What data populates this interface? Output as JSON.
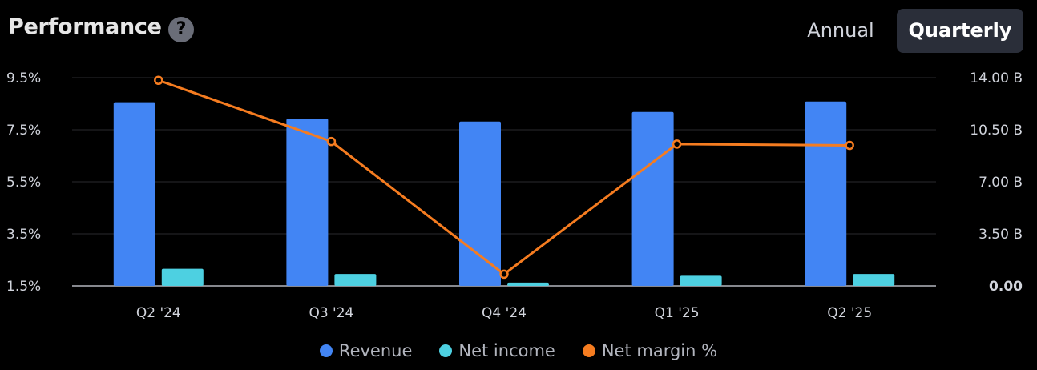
{
  "header": {
    "title": "Performance",
    "help_icon": "?",
    "toggle": {
      "annual_label": "Annual",
      "quarterly_label": "Quarterly",
      "selected": "Quarterly"
    }
  },
  "colors": {
    "revenue": "#4285f4",
    "net_income": "#4dd0e1",
    "net_margin": "#f57c20",
    "grid": "#2a2a2e",
    "baseline": "#b2b5be"
  },
  "chart_data": {
    "type": "bar",
    "categories": [
      "Q2 '24",
      "Q3 '24",
      "Q4 '24",
      "Q1 '25",
      "Q2 '25"
    ],
    "series": [
      {
        "name": "Revenue",
        "type": "bar",
        "axis": "right",
        "values": [
          12.35,
          11.25,
          11.05,
          11.7,
          12.4
        ]
      },
      {
        "name": "Net income",
        "type": "bar",
        "axis": "right",
        "values": [
          1.15,
          0.8,
          0.22,
          0.68,
          0.8
        ]
      },
      {
        "name": "Net margin %",
        "type": "line",
        "axis": "left",
        "values": [
          9.4,
          7.05,
          1.95,
          6.95,
          6.9
        ]
      }
    ],
    "left_axis": {
      "ticks": [
        "9.5%",
        "7.5%",
        "5.5%",
        "3.5%",
        "1.5%"
      ],
      "tick_values": [
        9.5,
        7.5,
        5.5,
        3.5,
        1.5
      ],
      "range": [
        1.5,
        9.5
      ]
    },
    "right_axis": {
      "ticks": [
        "14.00 B",
        "10.50 B",
        "7.00 B",
        "3.50 B",
        "0.00"
      ],
      "tick_values": [
        14.0,
        10.5,
        7.0,
        3.5,
        0.0
      ],
      "range": [
        0,
        14.0
      ]
    },
    "grid": true,
    "legend_position": "bottom-center"
  },
  "legend": [
    {
      "label": "Revenue",
      "color_key": "revenue"
    },
    {
      "label": "Net income",
      "color_key": "net_income"
    },
    {
      "label": "Net margin %",
      "color_key": "net_margin"
    }
  ]
}
